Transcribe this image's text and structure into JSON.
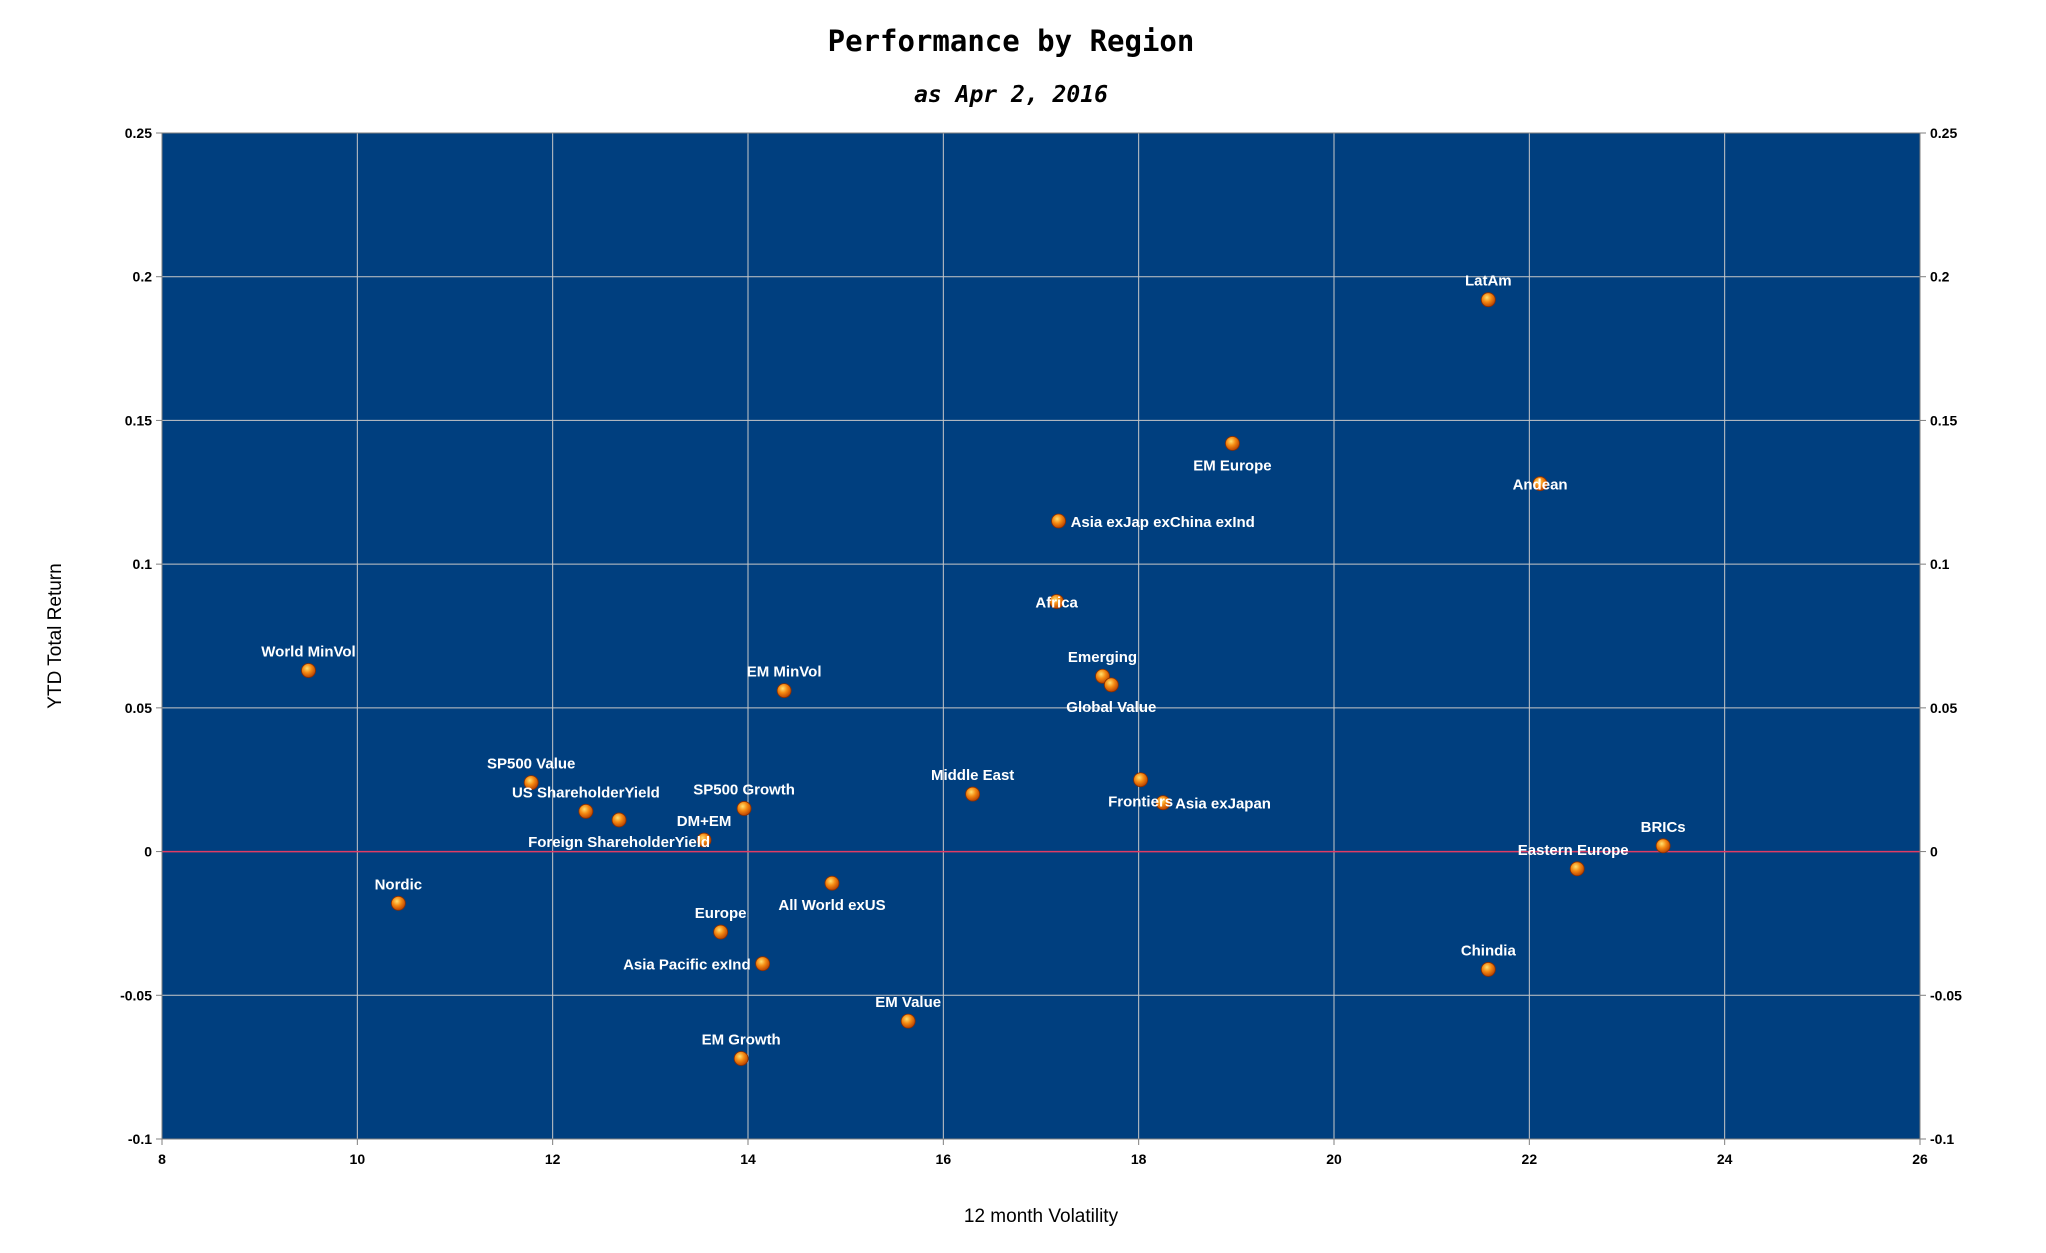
{
  "chart_data": {
    "type": "scatter",
    "title": "Performance by Region",
    "subtitle": "as Apr 2, 2016",
    "xlabel": "12 month Volatility",
    "ylabel": "YTD Total Return",
    "xlim": [
      8,
      26
    ],
    "ylim": [
      -0.1,
      0.25
    ],
    "x_ticks": [
      8,
      10,
      12,
      14,
      16,
      18,
      20,
      22,
      24,
      26
    ],
    "x_tick_labels": [
      "8",
      "10",
      "12",
      "14",
      "16",
      "18",
      "20",
      "22",
      "24",
      "26"
    ],
    "y_ticks": [
      -0.1,
      -0.05,
      0,
      0.05,
      0.1,
      0.15,
      0.2,
      0.25
    ],
    "y_tick_labels": [
      "-0.1",
      "-0.05",
      "0",
      "0.05",
      "0.1",
      "0.15",
      "0.2",
      "0.25"
    ],
    "grid": true,
    "plot_background": "#003f7f",
    "grid_color": "#c8c8c8",
    "zero_line_color": "#e03c64",
    "marker_color": "#f07a10",
    "label_color": "#ffffff",
    "points": [
      {
        "label": "World MinVol",
        "x": 9.5,
        "y": 0.063,
        "anchor": "above"
      },
      {
        "label": "Nordic",
        "x": 10.42,
        "y": -0.018,
        "anchor": "above"
      },
      {
        "label": "SP500 Value",
        "x": 11.78,
        "y": 0.024,
        "anchor": "above"
      },
      {
        "label": "US ShareholderYield",
        "x": 12.34,
        "y": 0.014,
        "anchor": "above"
      },
      {
        "label": "Foreign ShareholderYield",
        "x": 12.68,
        "y": 0.011,
        "anchor": "below"
      },
      {
        "label": "DM+EM",
        "x": 13.55,
        "y": 0.004,
        "anchor": "above"
      },
      {
        "label": "SP500 Growth",
        "x": 13.96,
        "y": 0.015,
        "anchor": "above"
      },
      {
        "label": "Europe",
        "x": 13.72,
        "y": -0.028,
        "anchor": "above"
      },
      {
        "label": "Asia Pacific exInd",
        "x": 14.15,
        "y": -0.039,
        "anchor": "left"
      },
      {
        "label": "EM Growth",
        "x": 13.93,
        "y": -0.072,
        "anchor": "above"
      },
      {
        "label": "EM MinVol",
        "x": 14.37,
        "y": 0.056,
        "anchor": "above"
      },
      {
        "label": "All World exUS",
        "x": 14.86,
        "y": -0.011,
        "anchor": "below"
      },
      {
        "label": "EM Value",
        "x": 15.64,
        "y": -0.059,
        "anchor": "above"
      },
      {
        "label": "Middle East",
        "x": 16.3,
        "y": 0.02,
        "anchor": "above"
      },
      {
        "label": "Africa",
        "x": 17.16,
        "y": 0.087,
        "anchor": "center"
      },
      {
        "label": "Asia exJap exChina exInd",
        "x": 17.18,
        "y": 0.115,
        "anchor": "right"
      },
      {
        "label": "Emerging",
        "x": 17.63,
        "y": 0.061,
        "anchor": "above"
      },
      {
        "label": "Global Value",
        "x": 17.72,
        "y": 0.058,
        "anchor": "below"
      },
      {
        "label": "Frontiers",
        "x": 18.02,
        "y": 0.025,
        "anchor": "below"
      },
      {
        "label": "Asia exJapan",
        "x": 18.25,
        "y": 0.017,
        "anchor": "right"
      },
      {
        "label": "EM Europe",
        "x": 18.96,
        "y": 0.142,
        "anchor": "below"
      },
      {
        "label": "LatAm",
        "x": 21.58,
        "y": 0.192,
        "anchor": "above"
      },
      {
        "label": "Andean",
        "x": 22.11,
        "y": 0.128,
        "anchor": "center"
      },
      {
        "label": "Chindia",
        "x": 21.58,
        "y": -0.041,
        "anchor": "above"
      },
      {
        "label": "Eastern Europe",
        "x": 22.49,
        "y": -0.006,
        "anchor": "above-left"
      },
      {
        "label": "BRICs",
        "x": 23.37,
        "y": 0.002,
        "anchor": "above"
      }
    ]
  }
}
